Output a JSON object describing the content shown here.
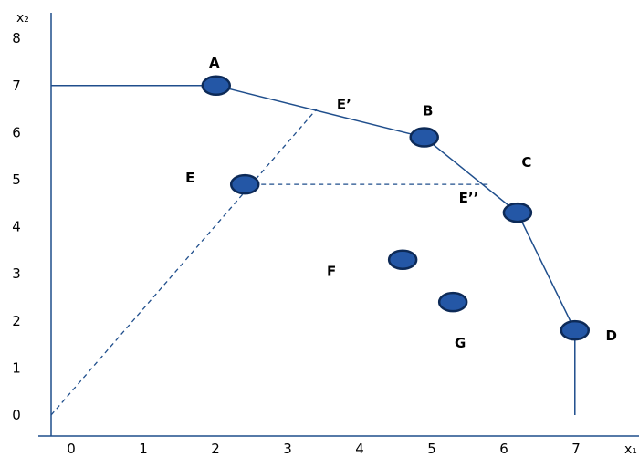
{
  "chart_data": {
    "type": "line",
    "x_axis": {
      "label": "x₁",
      "ticks": [
        "0",
        "1",
        "2",
        "3",
        "4",
        "5",
        "6",
        "7"
      ],
      "range": [
        0,
        8
      ]
    },
    "y_axis": {
      "label": "x₂",
      "ticks": [
        "0",
        "1",
        "2",
        "3",
        "4",
        "5",
        "6",
        "7",
        "8"
      ],
      "range": [
        0,
        9
      ]
    },
    "frontier": [
      [
        0,
        7
      ],
      [
        2.3,
        7
      ],
      [
        5.2,
        5.9
      ],
      [
        6.5,
        4.3
      ],
      [
        7.3,
        1.8
      ],
      [
        7.3,
        0
      ]
    ],
    "points": [
      {
        "label": "A",
        "x": 2.3,
        "y": 7
      },
      {
        "label": "B",
        "x": 5.2,
        "y": 5.9
      },
      {
        "label": "C",
        "x": 6.5,
        "y": 4.3
      },
      {
        "label": "D",
        "x": 7.3,
        "y": 1.8
      },
      {
        "label": "E",
        "x": 2.7,
        "y": 4.9
      },
      {
        "label": "F",
        "x": 4.9,
        "y": 3.3
      },
      {
        "label": "G",
        "x": 5.6,
        "y": 2.4
      }
    ],
    "marked_points": [
      {
        "label": "E’",
        "x": 3.7,
        "y": 6.5
      },
      {
        "label": "E’’",
        "x": 6.1,
        "y": 4.9
      }
    ],
    "dashed_lines": [
      {
        "from": [
          0,
          0
        ],
        "to": [
          3.7,
          6.5
        ]
      },
      {
        "from": [
          2.7,
          4.9
        ],
        "to": [
          6.1,
          4.9
        ]
      }
    ],
    "colors": {
      "line": "#1f4e8c",
      "point_fill": "#2457a6",
      "point_stroke": "#0d2a57"
    }
  }
}
